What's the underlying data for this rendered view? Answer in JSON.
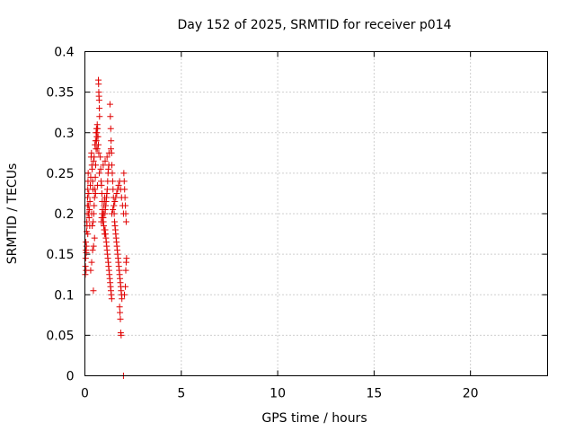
{
  "chart_data": {
    "type": "scatter",
    "title": "Day 152 of 2025, SRMTID for receiver p014",
    "xlabel": "GPS time / hours",
    "ylabel": "SRMTID / TECUs",
    "xlim": [
      0,
      24
    ],
    "ylim": [
      0,
      0.4
    ],
    "xticks": [
      0,
      5,
      10,
      15,
      20
    ],
    "yticks": [
      0,
      0.05,
      0.1,
      0.15,
      0.2,
      0.25,
      0.3,
      0.35,
      0.4
    ],
    "xtick_labels": [
      "0",
      "5",
      "10",
      "15",
      "20"
    ],
    "ytick_labels": [
      "0",
      "0.05",
      "0.1",
      "0.15",
      "0.2",
      "0.25",
      "0.3",
      "0.35",
      "0.4"
    ],
    "grid": true,
    "marker": "+",
    "color": "#e00000",
    "points": [
      [
        0.02,
        0.125
      ],
      [
        0.03,
        0.135
      ],
      [
        0.04,
        0.145
      ],
      [
        0.05,
        0.155
      ],
      [
        0.06,
        0.13
      ],
      [
        0.07,
        0.152
      ],
      [
        0.08,
        0.16
      ],
      [
        0.09,
        0.178
      ],
      [
        0.1,
        0.19
      ],
      [
        0.11,
        0.185
      ],
      [
        0.12,
        0.2
      ],
      [
        0.13,
        0.21
      ],
      [
        0.14,
        0.22
      ],
      [
        0.15,
        0.23
      ],
      [
        0.16,
        0.24
      ],
      [
        0.17,
        0.25
      ],
      [
        0.18,
        0.21
      ],
      [
        0.19,
        0.2
      ],
      [
        0.2,
        0.225
      ],
      [
        0.22,
        0.195
      ],
      [
        0.24,
        0.205
      ],
      [
        0.26,
        0.215
      ],
      [
        0.28,
        0.235
      ],
      [
        0.3,
        0.245
      ],
      [
        0.32,
        0.27
      ],
      [
        0.34,
        0.275
      ],
      [
        0.36,
        0.26
      ],
      [
        0.38,
        0.255
      ],
      [
        0.4,
        0.24
      ],
      [
        0.42,
        0.23
      ],
      [
        0.44,
        0.105
      ],
      [
        0.3,
        0.13
      ],
      [
        0.35,
        0.14
      ],
      [
        0.4,
        0.155
      ],
      [
        0.45,
        0.16
      ],
      [
        0.5,
        0.17
      ],
      [
        0.38,
        0.185
      ],
      [
        0.43,
        0.19
      ],
      [
        0.46,
        0.2
      ],
      [
        0.48,
        0.21
      ],
      [
        0.5,
        0.22
      ],
      [
        0.52,
        0.23
      ],
      [
        0.54,
        0.245
      ],
      [
        0.56,
        0.26
      ],
      [
        0.58,
        0.28
      ],
      [
        0.6,
        0.29
      ],
      [
        0.62,
        0.3
      ],
      [
        0.64,
        0.31
      ],
      [
        0.66,
        0.305
      ],
      [
        0.68,
        0.295
      ],
      [
        0.7,
        0.285
      ],
      [
        0.72,
        0.275
      ],
      [
        0.45,
        0.265
      ],
      [
        0.48,
        0.27
      ],
      [
        0.52,
        0.285
      ],
      [
        0.55,
        0.29
      ],
      [
        0.58,
        0.3
      ],
      [
        0.6,
        0.305
      ],
      [
        0.62,
        0.295
      ],
      [
        0.64,
        0.28
      ],
      [
        0.7,
        0.365
      ],
      [
        0.71,
        0.36
      ],
      [
        0.72,
        0.35
      ],
      [
        0.73,
        0.345
      ],
      [
        0.74,
        0.34
      ],
      [
        0.75,
        0.33
      ],
      [
        0.76,
        0.32
      ],
      [
        0.8,
        0.27
      ],
      [
        0.82,
        0.255
      ],
      [
        0.84,
        0.24
      ],
      [
        0.86,
        0.235
      ],
      [
        0.88,
        0.225
      ],
      [
        0.9,
        0.215
      ],
      [
        0.92,
        0.2
      ],
      [
        0.94,
        0.195
      ],
      [
        0.96,
        0.19
      ],
      [
        0.98,
        0.185
      ],
      [
        1.0,
        0.18
      ],
      [
        1.02,
        0.175
      ],
      [
        1.04,
        0.2
      ],
      [
        1.06,
        0.205
      ],
      [
        1.08,
        0.21
      ],
      [
        1.1,
        0.215
      ],
      [
        1.12,
        0.22
      ],
      [
        1.14,
        0.225
      ],
      [
        1.16,
        0.23
      ],
      [
        1.18,
        0.24
      ],
      [
        1.2,
        0.25
      ],
      [
        1.22,
        0.255
      ],
      [
        1.24,
        0.26
      ],
      [
        0.85,
        0.19
      ],
      [
        0.87,
        0.195
      ],
      [
        0.89,
        0.2
      ],
      [
        0.91,
        0.205
      ],
      [
        0.93,
        0.19
      ],
      [
        0.95,
        0.195
      ],
      [
        0.97,
        0.2
      ],
      [
        0.99,
        0.21
      ],
      [
        1.01,
        0.215
      ],
      [
        1.03,
        0.22
      ],
      [
        1.05,
        0.18
      ],
      [
        1.07,
        0.175
      ],
      [
        1.09,
        0.17
      ],
      [
        1.11,
        0.165
      ],
      [
        1.13,
        0.16
      ],
      [
        1.15,
        0.155
      ],
      [
        1.17,
        0.15
      ],
      [
        1.19,
        0.145
      ],
      [
        1.21,
        0.14
      ],
      [
        1.23,
        0.135
      ],
      [
        1.25,
        0.13
      ],
      [
        1.27,
        0.125
      ],
      [
        1.29,
        0.12
      ],
      [
        1.31,
        0.115
      ],
      [
        1.33,
        0.11
      ],
      [
        1.35,
        0.105
      ],
      [
        1.37,
        0.1
      ],
      [
        1.39,
        0.095
      ],
      [
        1.3,
        0.335
      ],
      [
        1.32,
        0.32
      ],
      [
        1.34,
        0.305
      ],
      [
        1.36,
        0.29
      ],
      [
        1.38,
        0.275
      ],
      [
        1.4,
        0.26
      ],
      [
        1.42,
        0.25
      ],
      [
        1.44,
        0.24
      ],
      [
        1.46,
        0.23
      ],
      [
        1.48,
        0.22
      ],
      [
        1.5,
        0.21
      ],
      [
        1.52,
        0.2
      ],
      [
        1.54,
        0.19
      ],
      [
        1.56,
        0.185
      ],
      [
        1.58,
        0.18
      ],
      [
        1.6,
        0.175
      ],
      [
        1.62,
        0.17
      ],
      [
        1.64,
        0.165
      ],
      [
        1.66,
        0.16
      ],
      [
        1.68,
        0.155
      ],
      [
        1.7,
        0.15
      ],
      [
        1.72,
        0.145
      ],
      [
        1.74,
        0.14
      ],
      [
        1.76,
        0.135
      ],
      [
        1.78,
        0.13
      ],
      [
        1.8,
        0.125
      ],
      [
        1.82,
        0.12
      ],
      [
        1.84,
        0.115
      ],
      [
        1.86,
        0.11
      ],
      [
        1.88,
        0.105
      ],
      [
        1.9,
        0.1
      ],
      [
        1.92,
        0.095
      ],
      [
        1.4,
        0.2
      ],
      [
        1.45,
        0.205
      ],
      [
        1.5,
        0.21
      ],
      [
        1.55,
        0.215
      ],
      [
        1.6,
        0.22
      ],
      [
        1.65,
        0.225
      ],
      [
        1.7,
        0.23
      ],
      [
        1.75,
        0.235
      ],
      [
        1.8,
        0.24
      ],
      [
        1.85,
        0.23
      ],
      [
        1.9,
        0.22
      ],
      [
        1.95,
        0.21
      ],
      [
        2.0,
        0.2
      ],
      [
        2.02,
        0.25
      ],
      [
        2.04,
        0.24
      ],
      [
        2.06,
        0.23
      ],
      [
        2.08,
        0.22
      ],
      [
        2.1,
        0.21
      ],
      [
        2.12,
        0.2
      ],
      [
        2.14,
        0.19
      ],
      [
        1.8,
        0.085
      ],
      [
        1.82,
        0.078
      ],
      [
        1.84,
        0.07
      ],
      [
        1.86,
        0.053
      ],
      [
        1.88,
        0.05
      ],
      [
        2.05,
        0.1
      ],
      [
        2.1,
        0.11
      ],
      [
        2.12,
        0.13
      ],
      [
        2.14,
        0.14
      ],
      [
        2.16,
        0.145
      ],
      [
        0.05,
        0.165
      ],
      [
        0.15,
        0.175
      ],
      [
        0.25,
        0.185
      ],
      [
        0.35,
        0.2
      ],
      [
        0.55,
        0.225
      ],
      [
        0.65,
        0.235
      ],
      [
        0.75,
        0.25
      ],
      [
        0.95,
        0.26
      ],
      [
        1.05,
        0.265
      ],
      [
        1.15,
        0.27
      ],
      [
        1.25,
        0.275
      ],
      [
        1.35,
        0.28
      ],
      [
        2.0,
        0.0
      ]
    ]
  }
}
